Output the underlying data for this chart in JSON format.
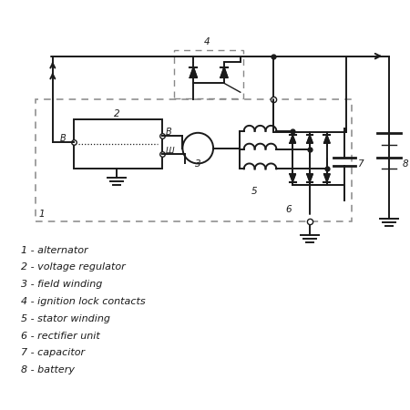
{
  "legend": [
    "1 - alternator",
    "2 - voltage regulator",
    "3 - field winding",
    "4 - ignition lock contacts",
    "5 - stator winding",
    "6 - rectifier unit",
    "7 - capacitor",
    "8 - battery"
  ],
  "bg_color": "#ffffff",
  "line_color": "#1a1a1a",
  "gray_color": "#888888"
}
